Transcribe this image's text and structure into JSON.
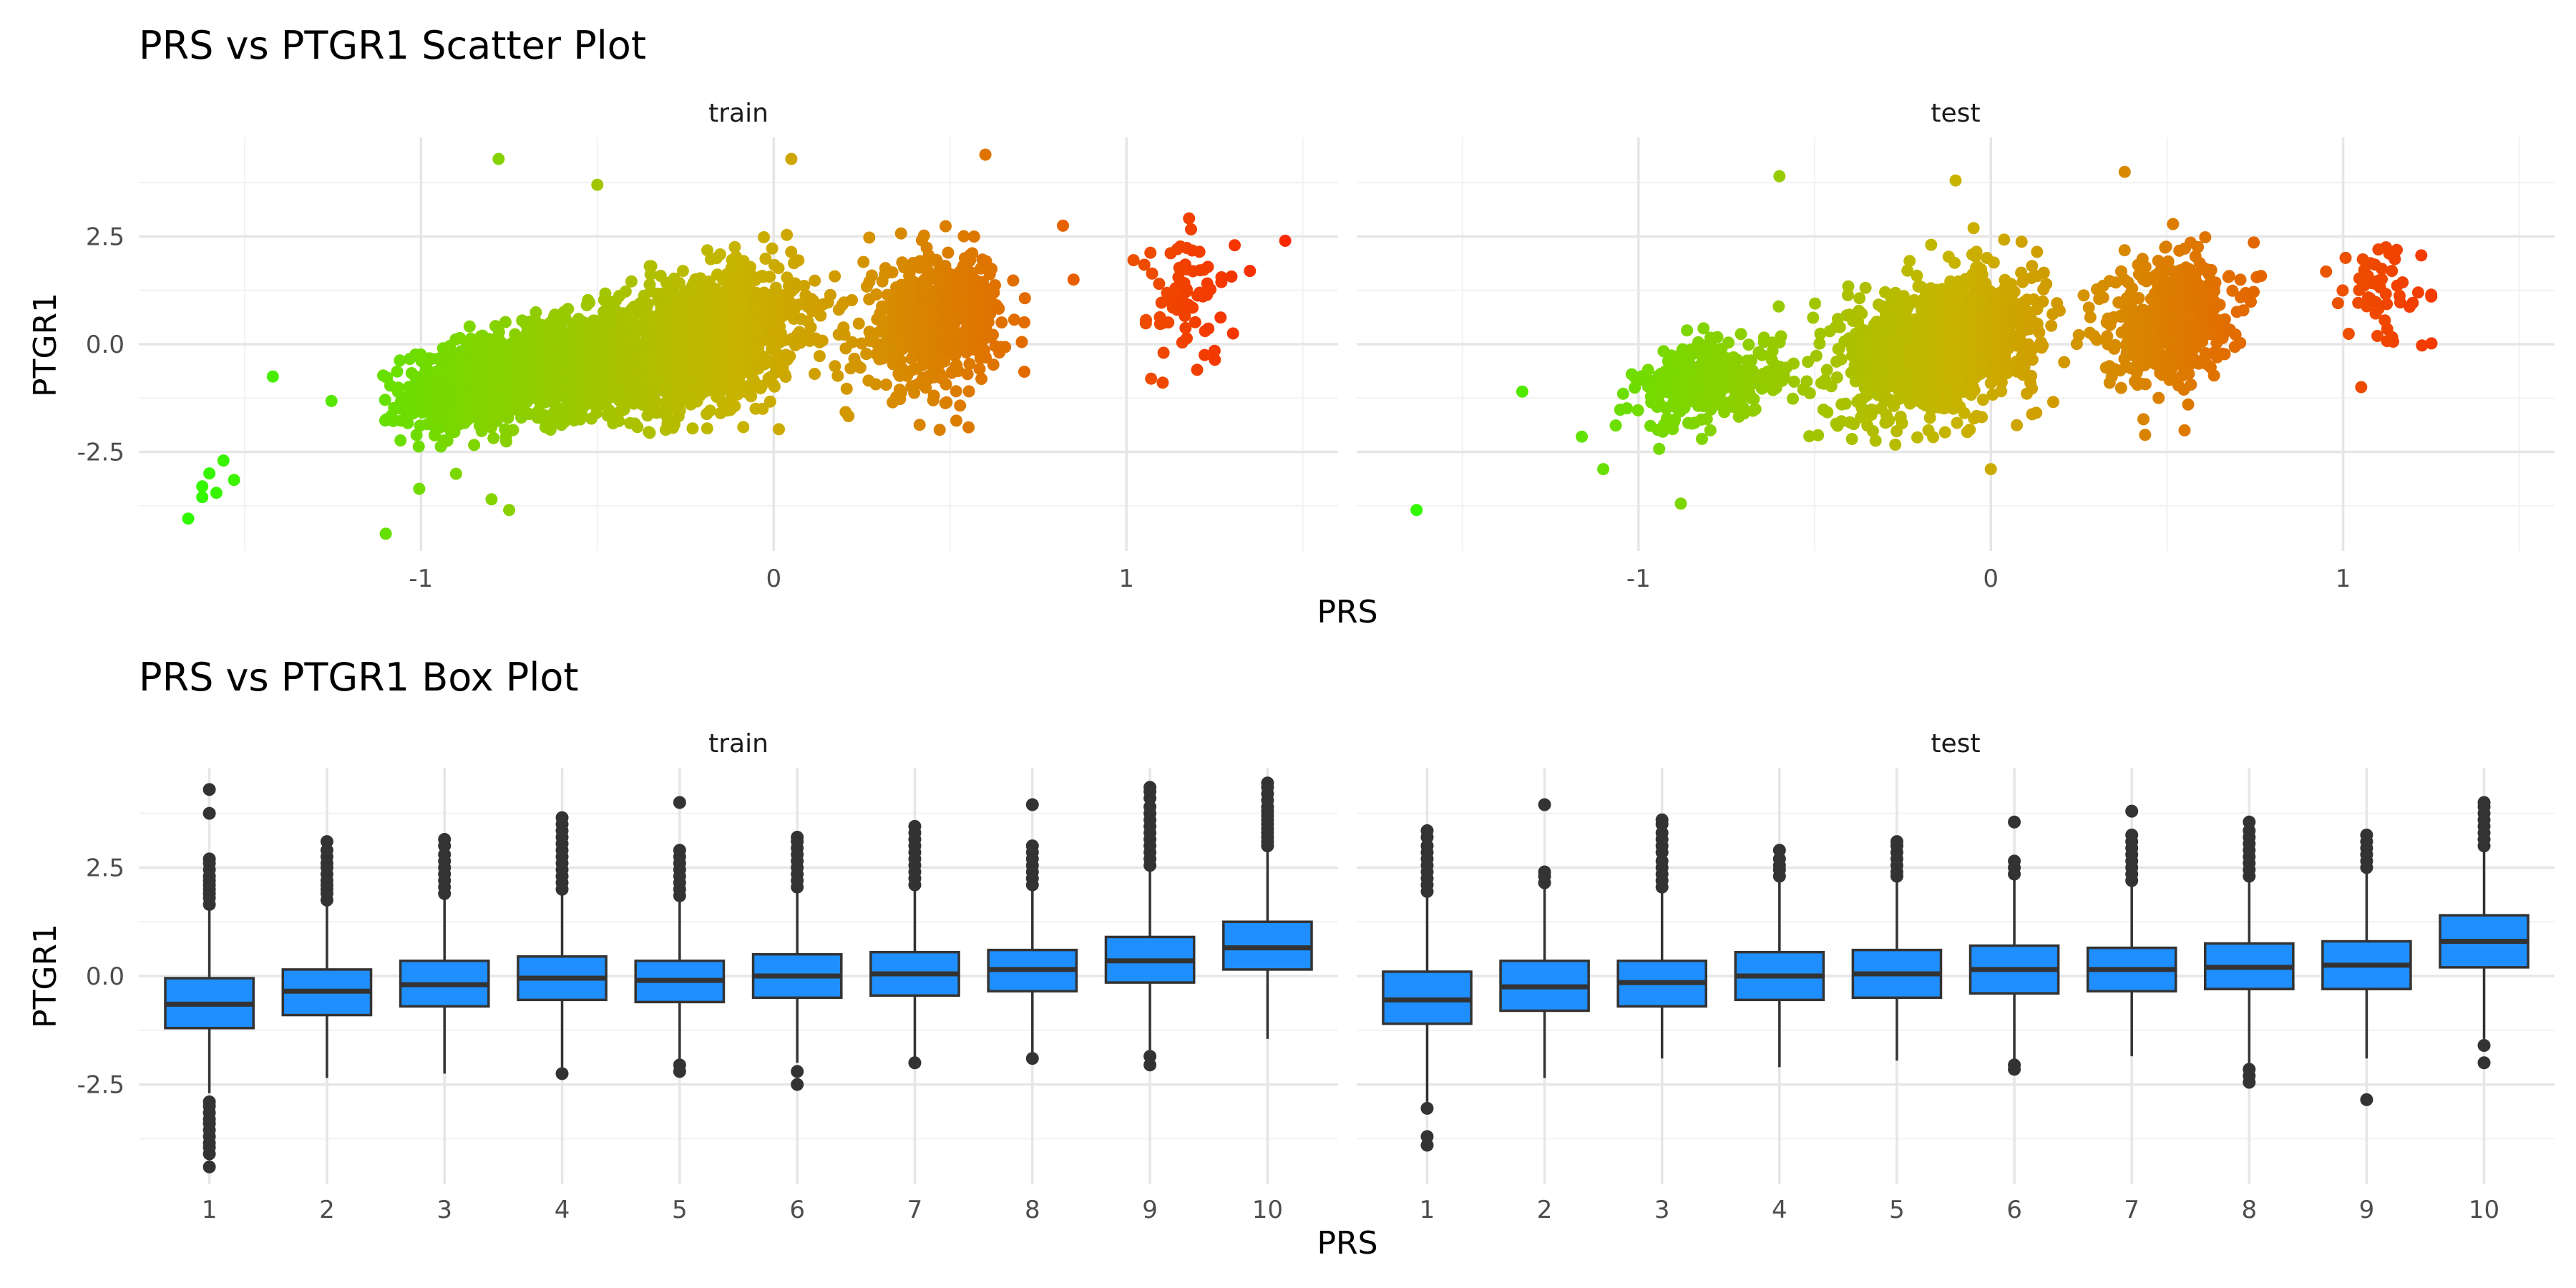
{
  "chart_data": [
    {
      "type": "scatter",
      "title": "PRS vs PTGR1 Scatter Plot",
      "xlabel": "PRS",
      "ylabel": "PTGR1",
      "facets": [
        "train",
        "test"
      ],
      "x_ticks": [
        "-1",
        "0",
        "1"
      ],
      "x_tick_values": [
        -1,
        0,
        1
      ],
      "y_ticks": [
        "-2.5",
        "0.0",
        "2.5"
      ],
      "y_tick_values": [
        -2.5,
        0,
        2.5
      ],
      "xlim": [
        -1.8,
        1.6
      ],
      "ylim": [
        -4.8,
        4.8
      ],
      "grid": true,
      "color_gradient": {
        "low": "#22ff00",
        "mid": "#c8b400",
        "high": "#ff1a00",
        "by": "PRS"
      },
      "panels": [
        {
          "name": "train",
          "clusters": [
            {
              "x_mean": -0.85,
              "x_sd": 0.1,
              "y_mean": -0.9,
              "y_sd": 0.55,
              "corr": 0.3,
              "n": 650
            },
            {
              "x_mean": -0.55,
              "x_sd": 0.12,
              "y_mean": -0.45,
              "y_sd": 0.6,
              "corr": 0.3,
              "n": 900
            },
            {
              "x_mean": -0.2,
              "x_sd": 0.13,
              "y_mean": 0.1,
              "y_sd": 0.75,
              "corr": 0.3,
              "n": 1400
            },
            {
              "x_mean": 0.45,
              "x_sd": 0.1,
              "y_mean": 0.5,
              "y_sd": 0.75,
              "corr": 0.2,
              "n": 550
            },
            {
              "x_mean": 1.18,
              "x_sd": 0.06,
              "y_mean": 1.1,
              "y_sd": 0.75,
              "corr": 0.0,
              "n": 70
            }
          ],
          "points": [
            {
              "x": -1.66,
              "y": -4.05
            },
            {
              "x": -1.62,
              "y": -3.3
            },
            {
              "x": -1.62,
              "y": -3.55
            },
            {
              "x": -1.6,
              "y": -3.0
            },
            {
              "x": -1.58,
              "y": -3.45
            },
            {
              "x": -1.56,
              "y": -2.7
            },
            {
              "x": -1.53,
              "y": -3.15
            },
            {
              "x": -1.42,
              "y": -0.75
            },
            {
              "x": -1.1,
              "y": -4.4
            },
            {
              "x": -0.78,
              "y": 4.3
            },
            {
              "x": -0.5,
              "y": 3.7
            },
            {
              "x": 0.05,
              "y": 4.3
            },
            {
              "x": 0.6,
              "y": 4.4
            },
            {
              "x": 0.85,
              "y": 1.5
            },
            {
              "x": 1.45,
              "y": 2.4
            },
            {
              "x": 1.35,
              "y": 1.7
            },
            {
              "x": 1.02,
              "y": 1.95
            },
            {
              "x": 1.07,
              "y": -0.8
            },
            {
              "x": -0.8,
              "y": -3.6
            },
            {
              "x": -0.75,
              "y": -3.85
            },
            {
              "x": 0.82,
              "y": 2.75
            }
          ]
        },
        {
          "name": "test",
          "clusters": [
            {
              "x_mean": -0.8,
              "x_sd": 0.1,
              "y_mean": -0.9,
              "y_sd": 0.5,
              "corr": 0.3,
              "n": 300
            },
            {
              "x_mean": -0.15,
              "x_sd": 0.14,
              "y_mean": 0.0,
              "y_sd": 0.8,
              "corr": 0.3,
              "n": 1100
            },
            {
              "x_mean": 0.5,
              "x_sd": 0.09,
              "y_mean": 0.6,
              "y_sd": 0.75,
              "corr": 0.2,
              "n": 450
            },
            {
              "x_mean": 1.1,
              "x_sd": 0.07,
              "y_mean": 1.2,
              "y_sd": 0.7,
              "corr": 0.0,
              "n": 55
            }
          ],
          "points": [
            {
              "x": -1.63,
              "y": -3.85
            },
            {
              "x": -0.88,
              "y": -3.7
            },
            {
              "x": -1.1,
              "y": -2.9
            },
            {
              "x": -0.1,
              "y": 3.8
            },
            {
              "x": 0.38,
              "y": 4.0
            },
            {
              "x": -0.6,
              "y": 3.9
            },
            {
              "x": 0.55,
              "y": -2.0
            },
            {
              "x": 1.25,
              "y": 1.15
            },
            {
              "x": -1.33,
              "y": -1.1
            },
            {
              "x": 0.0,
              "y": -2.9
            }
          ]
        }
      ]
    },
    {
      "type": "box",
      "title": "PRS vs PTGR1 Box Plot",
      "xlabel": "PRS",
      "ylabel": "PTGR1",
      "facets": [
        "train",
        "test"
      ],
      "categories": [
        "1",
        "2",
        "3",
        "4",
        "5",
        "6",
        "7",
        "8",
        "9",
        "10"
      ],
      "y_ticks": [
        "-2.5",
        "0.0",
        "2.5"
      ],
      "y_tick_values": [
        -2.5,
        0,
        2.5
      ],
      "ylim": [
        -4.8,
        4.8
      ],
      "box_color": "#1f8fff",
      "grid": true,
      "panels": [
        {
          "name": "train",
          "boxes": [
            {
              "q1": -1.2,
              "median": -0.65,
              "q3": -0.05,
              "lower": -2.7,
              "upper": 1.7,
              "outliers": [
                -4.4,
                -4.1,
                -3.95,
                -3.85,
                -3.7,
                -3.55,
                -3.4,
                -3.3,
                -3.15,
                -3.0,
                -2.9,
                1.65,
                1.8,
                1.9,
                2.0,
                2.1,
                2.2,
                2.3,
                2.45,
                2.6,
                2.7,
                3.75,
                4.3
              ]
            },
            {
              "q1": -0.9,
              "median": -0.35,
              "q3": 0.15,
              "lower": -2.35,
              "upper": 1.7,
              "outliers": [
                1.75,
                1.9,
                2.0,
                2.1,
                2.2,
                2.35,
                2.5,
                2.6,
                2.75,
                2.9,
                3.1
              ]
            },
            {
              "q1": -0.7,
              "median": -0.2,
              "q3": 0.35,
              "lower": -2.25,
              "upper": 1.85,
              "outliers": [
                1.9,
                2.05,
                2.2,
                2.35,
                2.5,
                2.65,
                2.8,
                3.0,
                3.15
              ]
            },
            {
              "q1": -0.55,
              "median": -0.05,
              "q3": 0.45,
              "lower": -2.1,
              "upper": 1.95,
              "outliers": [
                -2.25,
                2.0,
                2.15,
                2.3,
                2.45,
                2.6,
                2.75,
                2.9,
                3.05,
                3.2,
                3.35,
                3.5,
                3.65
              ]
            },
            {
              "q1": -0.6,
              "median": -0.1,
              "q3": 0.35,
              "lower": -1.95,
              "upper": 1.8,
              "outliers": [
                -2.05,
                -2.2,
                1.85,
                2.0,
                2.15,
                2.3,
                2.45,
                2.6,
                2.75,
                2.9,
                4.0
              ]
            },
            {
              "q1": -0.5,
              "median": 0.0,
              "q3": 0.5,
              "lower": -2.0,
              "upper": 2.0,
              "outliers": [
                -2.2,
                -2.5,
                2.05,
                2.2,
                2.35,
                2.5,
                2.65,
                2.8,
                2.95,
                3.1,
                3.2
              ]
            },
            {
              "q1": -0.45,
              "median": 0.05,
              "q3": 0.55,
              "lower": -1.95,
              "upper": 2.05,
              "outliers": [
                -2.0,
                2.1,
                2.25,
                2.4,
                2.55,
                2.7,
                2.85,
                3.0,
                3.15,
                3.3,
                3.45
              ]
            },
            {
              "q1": -0.35,
              "median": 0.15,
              "q3": 0.6,
              "lower": -1.8,
              "upper": 2.05,
              "outliers": [
                -1.9,
                2.1,
                2.25,
                2.4,
                2.55,
                2.7,
                2.85,
                3.0,
                3.95
              ]
            },
            {
              "q1": -0.15,
              "median": 0.35,
              "q3": 0.9,
              "lower": -1.7,
              "upper": 2.5,
              "outliers": [
                -1.85,
                -2.05,
                2.55,
                2.7,
                2.85,
                3.0,
                3.15,
                3.3,
                3.45,
                3.6,
                3.75,
                3.9,
                4.1,
                4.25,
                4.35
              ]
            },
            {
              "q1": 0.15,
              "median": 0.65,
              "q3": 1.25,
              "lower": -1.45,
              "upper": 2.9,
              "outliers": [
                3.0,
                3.1,
                3.2,
                3.3,
                3.4,
                3.5,
                3.6,
                3.7,
                3.8,
                3.9,
                4.05,
                4.2,
                4.35,
                4.45
              ]
            }
          ]
        },
        {
          "name": "test",
          "boxes": [
            {
              "q1": -1.1,
              "median": -0.55,
              "q3": 0.1,
              "lower": -2.9,
              "upper": 1.85,
              "outliers": [
                -3.05,
                -3.7,
                -3.9,
                1.95,
                2.1,
                2.25,
                2.4,
                2.55,
                2.7,
                2.85,
                3.0,
                3.2,
                3.35
              ]
            },
            {
              "q1": -0.8,
              "median": -0.25,
              "q3": 0.35,
              "lower": -2.35,
              "upper": 2.05,
              "outliers": [
                2.15,
                2.3,
                2.4,
                3.95
              ]
            },
            {
              "q1": -0.7,
              "median": -0.15,
              "q3": 0.35,
              "lower": -1.9,
              "upper": 1.95,
              "outliers": [
                2.05,
                2.2,
                2.35,
                2.5,
                2.65,
                2.85,
                3.0,
                3.15,
                3.3,
                3.5,
                3.6
              ]
            },
            {
              "q1": -0.55,
              "median": 0.0,
              "q3": 0.55,
              "lower": -2.1,
              "upper": 2.2,
              "outliers": [
                2.3,
                2.45,
                2.55,
                2.7,
                2.9
              ]
            },
            {
              "q1": -0.5,
              "median": 0.05,
              "q3": 0.6,
              "lower": -1.95,
              "upper": 2.2,
              "outliers": [
                2.3,
                2.4,
                2.55,
                2.7,
                2.85,
                3.0,
                3.1
              ]
            },
            {
              "q1": -0.4,
              "median": 0.15,
              "q3": 0.7,
              "lower": -1.95,
              "upper": 2.25,
              "outliers": [
                -2.05,
                -2.15,
                2.35,
                2.5,
                2.65,
                3.55
              ]
            },
            {
              "q1": -0.35,
              "median": 0.15,
              "q3": 0.65,
              "lower": -1.85,
              "upper": 2.1,
              "outliers": [
                2.2,
                2.35,
                2.5,
                2.65,
                2.8,
                2.95,
                3.1,
                3.25,
                3.8
              ]
            },
            {
              "q1": -0.3,
              "median": 0.2,
              "q3": 0.75,
              "lower": -2.05,
              "upper": 2.2,
              "outliers": [
                -2.15,
                -2.3,
                -2.45,
                2.3,
                2.45,
                2.6,
                2.75,
                2.9,
                3.05,
                3.2,
                3.35,
                3.55
              ]
            },
            {
              "q1": -0.3,
              "median": 0.25,
              "q3": 0.8,
              "lower": -1.9,
              "upper": 2.4,
              "outliers": [
                -2.85,
                2.5,
                2.65,
                2.8,
                2.95,
                3.1,
                3.25
              ]
            },
            {
              "q1": 0.2,
              "median": 0.8,
              "q3": 1.4,
              "lower": -1.45,
              "upper": 2.9,
              "outliers": [
                -1.6,
                -2.0,
                3.0,
                3.15,
                3.3,
                3.45,
                3.6,
                3.75,
                3.9,
                4.0
              ]
            }
          ]
        }
      ]
    }
  ]
}
